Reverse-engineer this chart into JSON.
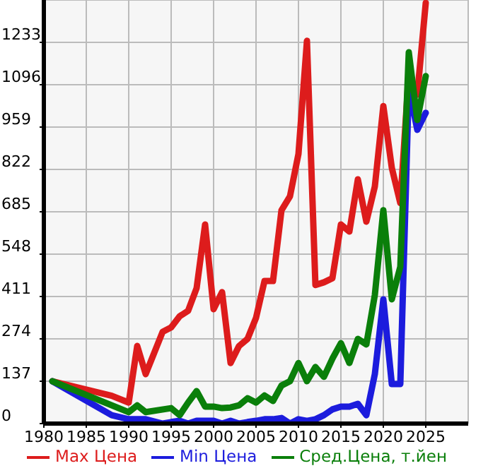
{
  "chart_data": {
    "type": "line",
    "xlim": [
      1980,
      2030
    ],
    "xticks": [
      1980,
      1985,
      1990,
      1995,
      2000,
      2005,
      2010,
      2015,
      2020,
      2025
    ],
    "ylim": [
      0,
      1370
    ],
    "yticks": [
      0,
      137,
      274,
      411,
      548,
      685,
      822,
      959,
      1096,
      1233
    ],
    "grid": true,
    "legend": "bottom",
    "marker": "none",
    "line_style": "solid",
    "series": [
      {
        "name": "Max Цена",
        "color": "#dd1c1c",
        "x": [
          1981,
          1988,
          1990,
          1991,
          1992,
          1994,
          1995,
          1996,
          1997,
          1998,
          1999,
          2000,
          2001,
          2002,
          2003,
          2004,
          2005,
          2006,
          2007,
          2008,
          2009,
          2010,
          2011,
          2012,
          2013,
          2014,
          2015,
          2016,
          2017,
          2018,
          2019,
          2020,
          2021,
          2022,
          2023,
          2024,
          2025
        ],
        "values": [
          137,
          90,
          68,
          251,
          160,
          297,
          311,
          347,
          365,
          438,
          644,
          370,
          425,
          196,
          251,
          274,
          342,
          461,
          461,
          690,
          735,
          872,
          1238,
          448,
          457,
          470,
          644,
          621,
          790,
          653,
          767,
          1027,
          827,
          713,
          1133,
          1064,
          1361
        ]
      },
      {
        "name": "Min Цена",
        "color": "#1c1cdd",
        "x": [
          1981,
          1988,
          1990,
          1991,
          1992,
          1994,
          1995,
          1996,
          1997,
          1998,
          1999,
          2000,
          2001,
          2002,
          2003,
          2004,
          2005,
          2006,
          2007,
          2008,
          2009,
          2010,
          2011,
          2012,
          2013,
          2014,
          2015,
          2016,
          2017,
          2018,
          2019,
          2020,
          2021,
          2022,
          2023,
          2024,
          2025
        ],
        "values": [
          137,
          27,
          14,
          14,
          14,
          0,
          5,
          9,
          0,
          9,
          9,
          9,
          0,
          9,
          0,
          5,
          9,
          14,
          14,
          18,
          0,
          14,
          9,
          14,
          27,
          46,
          55,
          55,
          64,
          27,
          160,
          402,
          128,
          128,
          1087,
          950,
          1005
        ]
      },
      {
        "name": "Сред.Цена, т.йен",
        "color": "#0a7f0a",
        "x": [
          1981,
          1990,
          1991,
          1992,
          1995,
          1996,
          1997,
          1998,
          1999,
          2000,
          2001,
          2002,
          2003,
          2004,
          2005,
          2006,
          2007,
          2008,
          2009,
          2010,
          2011,
          2012,
          2013,
          2014,
          2015,
          2016,
          2017,
          2018,
          2019,
          2020,
          2021,
          2022,
          2023,
          2024,
          2025
        ],
        "values": [
          137,
          37,
          59,
          37,
          50,
          27,
          68,
          105,
          55,
          55,
          50,
          52,
          59,
          82,
          68,
          91,
          73,
          123,
          137,
          196,
          137,
          183,
          151,
          210,
          260,
          196,
          274,
          256,
          416,
          690,
          402,
          507,
          1201,
          982,
          1124
        ]
      }
    ]
  }
}
